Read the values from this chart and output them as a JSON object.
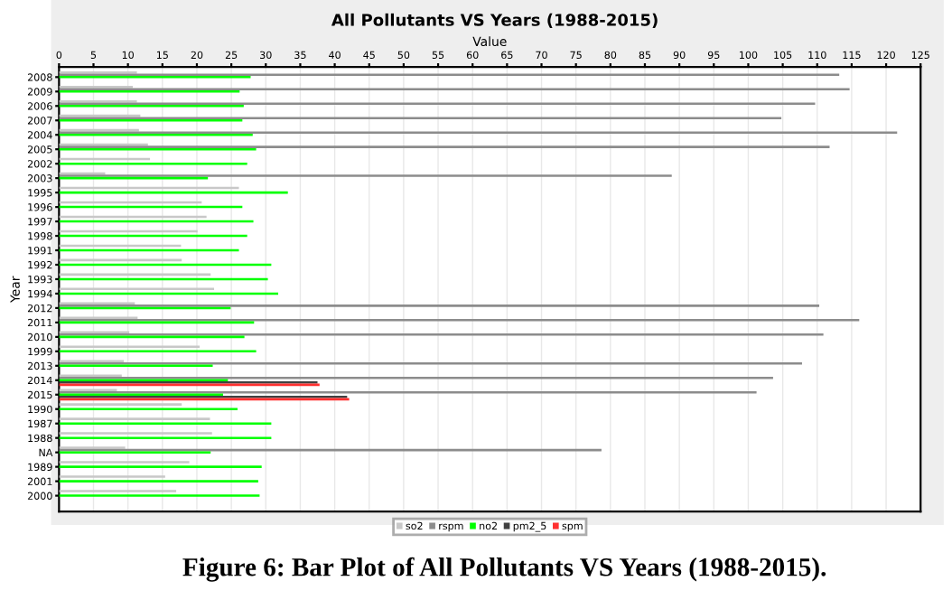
{
  "chart_data": {
    "type": "bar",
    "orientation": "horizontal",
    "title": "All Pollutants VS Years (1988-2015)",
    "xlabel": "Value",
    "ylabel": "Year",
    "categories": [
      "2008",
      "2009",
      "2006",
      "2007",
      "2004",
      "2005",
      "2002",
      "2003",
      "1995",
      "1996",
      "1997",
      "1998",
      "1991",
      "1992",
      "1993",
      "1994",
      "2012",
      "2011",
      "2010",
      "1999",
      "2013",
      "2014",
      "2015",
      "1990",
      "1987",
      "1988",
      "NA",
      "1989",
      "2001",
      "2000"
    ],
    "series": [
      {
        "name": "so2",
        "color": "#c8c8c8",
        "values": [
          11.3,
          10.7,
          11.3,
          11.8,
          11.6,
          12.9,
          13.2,
          6.7,
          26.1,
          20.7,
          21.4,
          20.1,
          17.7,
          17.8,
          22.0,
          22.5,
          11.0,
          11.4,
          10.2,
          20.4,
          9.4,
          9.1,
          8.4,
          17.8,
          21.9,
          22.2,
          9.6,
          18.9,
          15.4,
          17.0
        ]
      },
      {
        "name": "rspm",
        "color": "#8c8c8c",
        "values": [
          113.2,
          114.7,
          109.7,
          104.8,
          121.6,
          111.8,
          null,
          88.9,
          null,
          null,
          null,
          null,
          null,
          null,
          null,
          null,
          110.3,
          116.1,
          110.9,
          null,
          107.8,
          103.6,
          101.2,
          null,
          null,
          null,
          78.7,
          null,
          null,
          null
        ]
      },
      {
        "name": "no2",
        "color": "#00ff00",
        "values": [
          27.8,
          26.2,
          26.8,
          26.6,
          28.1,
          28.6,
          27.3,
          21.6,
          33.2,
          26.6,
          28.2,
          27.3,
          26.1,
          30.8,
          30.3,
          31.8,
          24.9,
          28.3,
          26.9,
          28.6,
          22.3,
          24.5,
          23.8,
          25.9,
          30.8,
          30.8,
          22.0,
          29.4,
          28.9,
          29.1
        ]
      },
      {
        "name": "pm2_5",
        "color": "#404040",
        "values": [
          null,
          null,
          null,
          null,
          null,
          null,
          null,
          null,
          null,
          null,
          null,
          null,
          null,
          null,
          null,
          null,
          null,
          null,
          null,
          null,
          null,
          37.5,
          41.8,
          null,
          null,
          null,
          null,
          null,
          null,
          null
        ]
      },
      {
        "name": "spm",
        "color": "#ff3030",
        "values": [
          null,
          null,
          null,
          null,
          null,
          null,
          null,
          null,
          null,
          null,
          null,
          null,
          null,
          null,
          null,
          null,
          null,
          null,
          null,
          null,
          null,
          37.8,
          42.1,
          null,
          null,
          null,
          null,
          null,
          null,
          null
        ]
      }
    ],
    "xlim": [
      0,
      125
    ],
    "xticks": [
      0,
      5,
      10,
      15,
      20,
      25,
      30,
      35,
      40,
      45,
      50,
      55,
      60,
      65,
      70,
      75,
      80,
      85,
      90,
      95,
      100,
      105,
      110,
      115,
      120,
      125
    ],
    "grid": "x",
    "legend": "bottom",
    "annotations": [
      "Figure 6: Bar Plot of All Pollutants VS Years (1988-2015)."
    ]
  }
}
